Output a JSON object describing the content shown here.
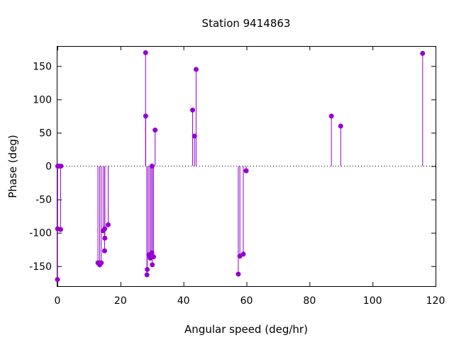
{
  "chart_data": {
    "type": "scatter",
    "style": "impulses-with-points",
    "title": "Station 9414863",
    "xlabel": "Angular speed (deg/hr)",
    "ylabel": "Phase (deg)",
    "xlim": [
      0,
      120
    ],
    "ylim": [
      -180,
      180
    ],
    "xticks": [
      0,
      20,
      40,
      60,
      80,
      100,
      120
    ],
    "yticks": [
      -150,
      -100,
      -50,
      0,
      50,
      100,
      150
    ],
    "zero_line": "dotted",
    "grid": false,
    "legend": "none",
    "color": "#9400d3",
    "points": [
      {
        "x": 0.0,
        "y": -170
      },
      {
        "x": 0.04,
        "y": -94
      },
      {
        "x": 0.08,
        "y": 0
      },
      {
        "x": 0.5,
        "y": 0
      },
      {
        "x": 1.0,
        "y": -95
      },
      {
        "x": 1.1,
        "y": 0
      },
      {
        "x": 12.85,
        "y": -145
      },
      {
        "x": 13.4,
        "y": -148
      },
      {
        "x": 13.9,
        "y": -145
      },
      {
        "x": 14.5,
        "y": -97
      },
      {
        "x": 14.96,
        "y": -127
      },
      {
        "x": 15.0,
        "y": -94
      },
      {
        "x": 15.04,
        "y": -108
      },
      {
        "x": 16.1,
        "y": -88
      },
      {
        "x": 27.97,
        "y": 170
      },
      {
        "x": 28.0,
        "y": 75
      },
      {
        "x": 28.4,
        "y": -163
      },
      {
        "x": 28.5,
        "y": -155
      },
      {
        "x": 29.0,
        "y": -133
      },
      {
        "x": 29.45,
        "y": -138
      },
      {
        "x": 29.5,
        "y": -137
      },
      {
        "x": 29.96,
        "y": -130
      },
      {
        "x": 30.0,
        "y": 0
      },
      {
        "x": 30.1,
        "y": -148
      },
      {
        "x": 30.5,
        "y": -136
      },
      {
        "x": 31.0,
        "y": 54
      },
      {
        "x": 42.9,
        "y": 84
      },
      {
        "x": 43.5,
        "y": 45
      },
      {
        "x": 44.0,
        "y": 145
      },
      {
        "x": 57.4,
        "y": -162
      },
      {
        "x": 57.9,
        "y": -135
      },
      {
        "x": 58.98,
        "y": -132
      },
      {
        "x": 59.9,
        "y": -7
      },
      {
        "x": 86.95,
        "y": 75
      },
      {
        "x": 89.9,
        "y": 60
      },
      {
        "x": 115.9,
        "y": 169
      }
    ]
  }
}
